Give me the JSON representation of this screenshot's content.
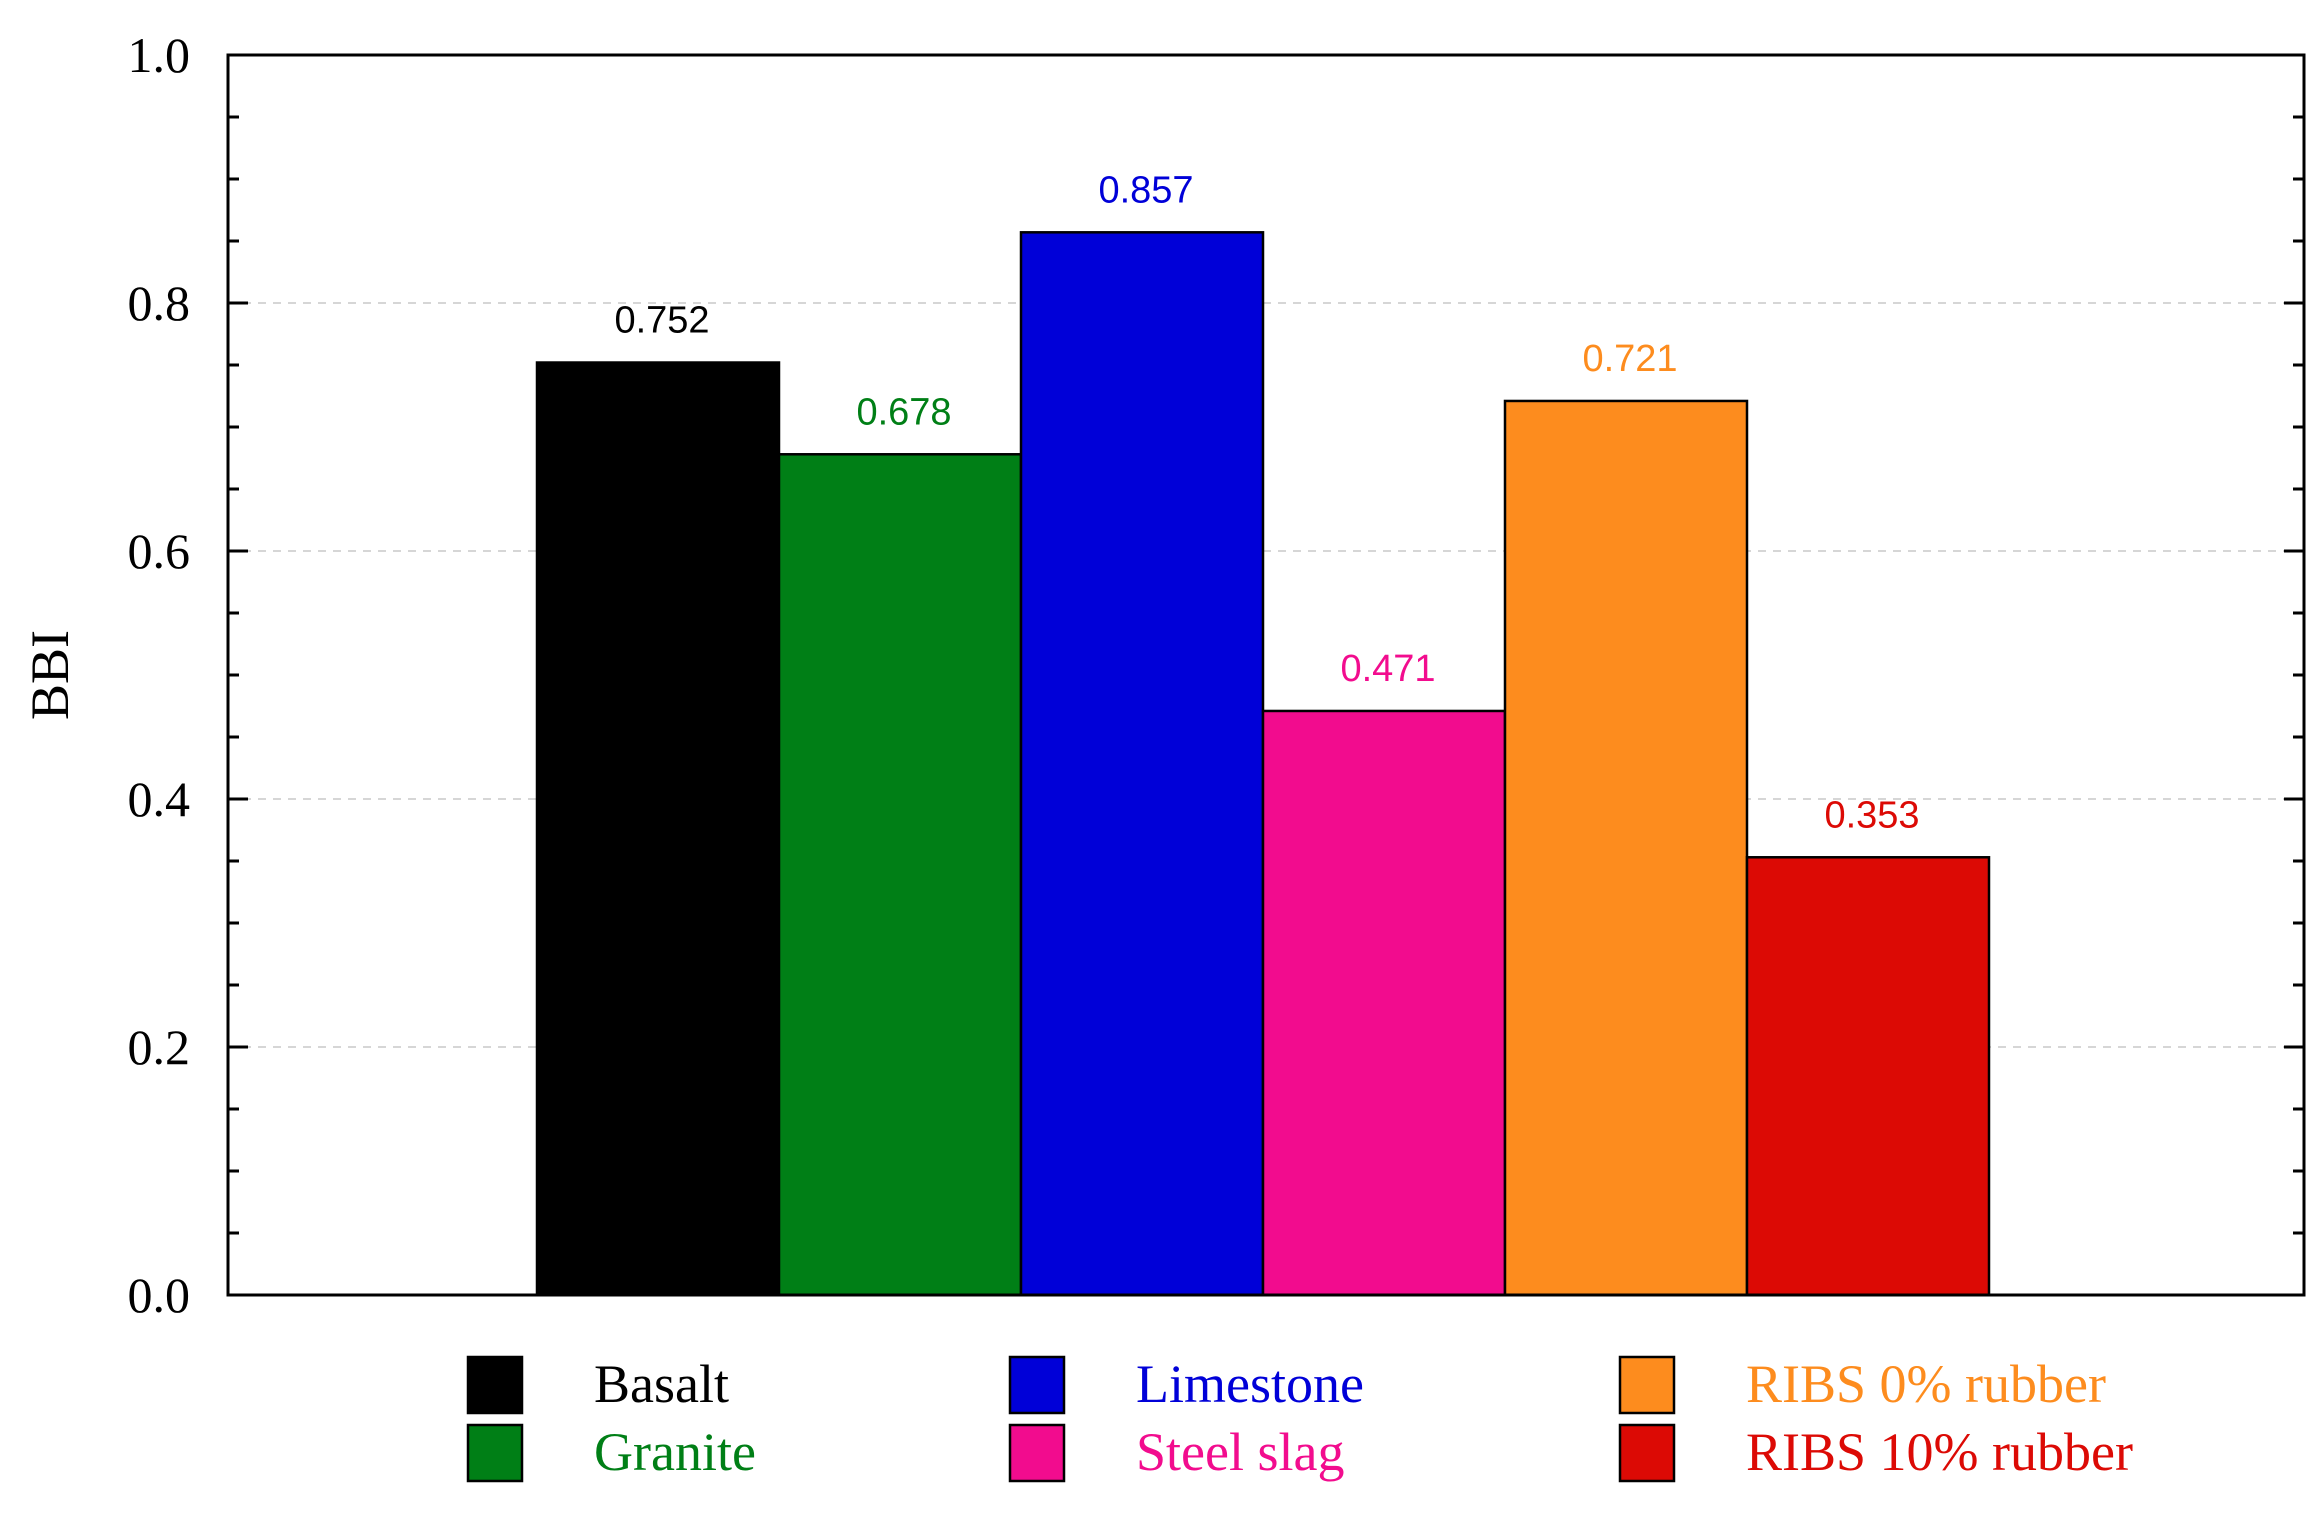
{
  "chart_data": {
    "type": "bar",
    "title": "",
    "xlabel": "",
    "ylabel": "BBI",
    "ylim": [
      0,
      1.0
    ],
    "yticks": [
      "0.0",
      "0.2",
      "0.4",
      "0.6",
      "0.8",
      "1.0"
    ],
    "grid": "horizontal dashed at major ticks",
    "legend_position": "bottom",
    "categories": [
      "Basalt",
      "Granite",
      "Limestone",
      "Steel slag",
      "RIBS 0% rubber",
      "RIBS 10% rubber"
    ],
    "values": [
      0.752,
      0.678,
      0.857,
      0.471,
      0.721,
      0.353
    ],
    "value_labels": [
      "0.752",
      "0.678",
      "0.857",
      "0.471",
      "0.721",
      "0.353"
    ],
    "colors": [
      "#000000",
      "#007f16",
      "#0000d8",
      "#f20c8e",
      "#fd8c1e",
      "#dc0a05"
    ],
    "label_colors": [
      "#000000",
      "#007f16",
      "#0000d8",
      "#f20c8e",
      "#fd8c1e",
      "#dc0a05"
    ]
  }
}
